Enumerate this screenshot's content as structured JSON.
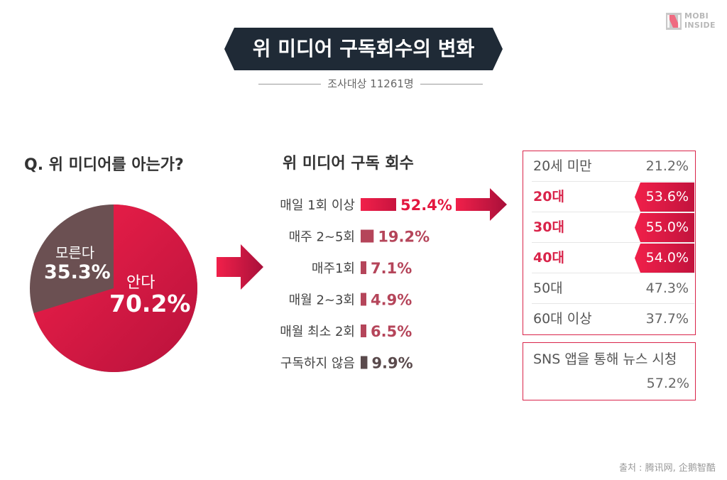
{
  "logo": {
    "line1": "MOBI",
    "line2": "INSIDE"
  },
  "title": "위 미디어 구독회수의 변화",
  "subtitle": "조사대상 11261명",
  "colors": {
    "accent": "#e3173f",
    "accent_dark": "#a8103a",
    "brown": "#6b5052",
    "banner": "#1f2a36"
  },
  "source": "출처 : 腾讯网, 企鹅智酷",
  "chart_data": [
    {
      "type": "pie",
      "title": "Q. 위 미디어를 아는가?",
      "slices": [
        {
          "label": "안다",
          "value": 70.2,
          "display": "70.2%",
          "color": "#e3173f"
        },
        {
          "label": "모른다",
          "value": 35.3,
          "display": "35.3%",
          "color": "#6b5052"
        }
      ]
    },
    {
      "type": "bar",
      "title": "위 미디어 구독 회수",
      "categories": [
        "매일 1회 이상",
        "매주 2~5회",
        "매주1회",
        "매월 2~3회",
        "매월 최소 2회",
        "구독하지 않음"
      ],
      "values": [
        52.4,
        19.2,
        7.1,
        4.9,
        6.5,
        9.9
      ],
      "labels": [
        "52.4%",
        "19.2%",
        "7.1%",
        "4.9%",
        "6.5%",
        "9.9%"
      ]
    },
    {
      "type": "table",
      "rows": [
        {
          "category": "20세 미만",
          "value": "21.2%",
          "highlight": false
        },
        {
          "category": "20대",
          "value": "53.6%",
          "highlight": true
        },
        {
          "category": "30대",
          "value": "55.0%",
          "highlight": true
        },
        {
          "category": "40대",
          "value": "54.0%",
          "highlight": true
        },
        {
          "category": "50대",
          "value": "47.3%",
          "highlight": false
        },
        {
          "category": "60대 이상",
          "value": "37.7%",
          "highlight": false
        }
      ]
    },
    {
      "type": "table",
      "rows": [
        {
          "category": "SNS 앱을 통해 뉴스 시청",
          "value": "57.2%"
        }
      ]
    }
  ]
}
